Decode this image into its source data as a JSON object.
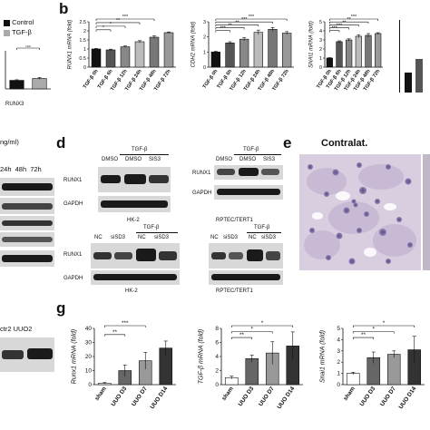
{
  "panel_labels": {
    "b": "b",
    "d": "d",
    "e": "e",
    "g": "g"
  },
  "a": {
    "legend": [
      "Control",
      "TGF-β"
    ],
    "legend_colors": [
      "#111111",
      "#aaaaaa"
    ],
    "ns": "ns",
    "xlabel": "RUNX3"
  },
  "c": {
    "unit_frag": "ng/ml)",
    "times": [
      "24h",
      "48h",
      "72h"
    ],
    "bottom_label": "ctr2  UUO2"
  },
  "d": {
    "blot1": {
      "top_group": "TGF-β",
      "lanes": [
        "DMSO",
        "DMSO",
        "SIS3"
      ],
      "rows": [
        "RUNX1",
        "GAPDH"
      ],
      "cell": "HK-2"
    },
    "blot2": {
      "top_group": "TGF-β",
      "lanes": [
        "DMSO",
        "DMSO",
        "SIS3"
      ],
      "rows": [
        "RUNX1",
        "GAPDH"
      ],
      "cell": "RPTEC/TERT1"
    },
    "blot3": {
      "top_group": "TGF-β",
      "lanes": [
        "NC",
        "siSD3",
        "NC",
        "siSD3"
      ],
      "rows": [
        "RUNX1",
        "GAPDH"
      ],
      "cell": "HK-2"
    },
    "blot4": {
      "top_group": "TGF-β",
      "lanes": [
        "NC",
        "siSD3",
        "NC",
        "siSD3"
      ],
      "rows": [
        "RUNX1",
        "GAPDH"
      ],
      "cell": "RPTEC/TERT1"
    }
  },
  "e": {
    "title": "Contralat."
  },
  "chart_data": [
    {
      "id": "b1",
      "type": "bar",
      "ylabel": "RUNX1 mRNA (fold)",
      "ylim": [
        0,
        2.5
      ],
      "yticks": [
        0,
        0.5,
        1,
        1.5,
        2,
        2.5
      ],
      "categories": [
        "TGF-β 0h",
        "TGF-β 6h",
        "TGF-β 12h",
        "TGF-β 24h",
        "TGF-β 48h",
        "TGF-β 72h"
      ],
      "values": [
        1.0,
        0.95,
        1.12,
        1.4,
        1.65,
        1.9
      ],
      "errors": [
        0.03,
        0.04,
        0.05,
        0.06,
        0.08,
        0.04
      ],
      "colors": [
        "#111111",
        "#555555",
        "#888888",
        "#bbbbbb",
        "#777777",
        "#999999"
      ],
      "sig": [
        "*",
        "*",
        "**",
        "***"
      ]
    },
    {
      "id": "b2",
      "type": "bar",
      "ylabel": "CDH2 mRNA (fold)",
      "ylim": [
        0,
        3
      ],
      "yticks": [
        0,
        1,
        2,
        3
      ],
      "categories": [
        "TGF-β 0h",
        "TGF-β 6h",
        "TGF-β 12h",
        "TGF-β 24h",
        "TGF-β 48h",
        "TGF-β 72h"
      ],
      "values": [
        1.0,
        1.6,
        1.85,
        2.3,
        2.5,
        2.25
      ],
      "errors": [
        0.05,
        0.08,
        0.1,
        0.15,
        0.12,
        0.1
      ],
      "colors": [
        "#111111",
        "#555555",
        "#888888",
        "#bbbbbb",
        "#777777",
        "#999999"
      ],
      "sig": [
        "***",
        "**",
        "**",
        "***",
        "***"
      ]
    },
    {
      "id": "b3",
      "type": "bar",
      "ylabel": "SNAI1 mRNA (fold)",
      "ylim": [
        0,
        5
      ],
      "yticks": [
        0,
        1,
        2,
        3,
        4,
        5
      ],
      "categories": [
        "TGF-β 0h",
        "TGF-β 6h",
        "TGF-β 12h",
        "TGF-β 24h",
        "TGF-β 48h",
        "TGF-β 72h"
      ],
      "values": [
        1.0,
        2.8,
        3.0,
        3.4,
        3.5,
        3.7
      ],
      "errors": [
        0.05,
        0.1,
        0.12,
        0.15,
        0.2,
        0.1
      ],
      "colors": [
        "#111111",
        "#555555",
        "#888888",
        "#bbbbbb",
        "#777777",
        "#999999"
      ],
      "sig": [
        "***",
        "***",
        "**",
        "**",
        "***"
      ]
    },
    {
      "id": "a1",
      "type": "bar",
      "ylabel": "",
      "ylim": [
        0,
        2
      ],
      "yticks": [],
      "categories": [
        "Control",
        "TGF-β"
      ],
      "values": [
        0.45,
        0.55
      ],
      "errors": [
        0.03,
        0.05
      ],
      "colors": [
        "#111111",
        "#aaaaaa"
      ],
      "sig": [
        "ns"
      ]
    },
    {
      "id": "g1",
      "type": "bar",
      "ylabel": "Runx1 mRNA (fold)",
      "ylim": [
        0,
        40
      ],
      "yticks": [
        0,
        10,
        20,
        30,
        40
      ],
      "categories": [
        "sham",
        "UUO D3",
        "UUO D7",
        "UUO D14"
      ],
      "values": [
        1,
        10,
        17,
        26
      ],
      "errors": [
        0.5,
        4,
        6,
        5
      ],
      "colors": [
        "#ffffff",
        "#666666",
        "#999999",
        "#333333"
      ],
      "sig": [
        "**",
        "***"
      ]
    },
    {
      "id": "g2",
      "type": "bar",
      "ylabel": "TGF-β mRNA (fold)",
      "ylim": [
        0,
        8
      ],
      "yticks": [
        0,
        2,
        4,
        6,
        8
      ],
      "categories": [
        "sham",
        "UUO D3",
        "UUO D7",
        "UUO D14"
      ],
      "values": [
        1,
        3.7,
        4.5,
        5.5
      ],
      "errors": [
        0.2,
        0.5,
        1.6,
        2.0
      ],
      "colors": [
        "#ffffff",
        "#666666",
        "#999999",
        "#333333"
      ],
      "sig": [
        "**",
        "*",
        "*"
      ]
    },
    {
      "id": "g3",
      "type": "bar",
      "ylabel": "Snai1 mRNA (fold)",
      "ylim": [
        0,
        5
      ],
      "yticks": [
        0,
        1,
        2,
        3,
        4,
        5
      ],
      "categories": [
        "sham",
        "UUO D3",
        "UUO D7",
        "UUO D14"
      ],
      "values": [
        1,
        2.4,
        2.7,
        3.1
      ],
      "errors": [
        0.1,
        0.5,
        0.3,
        1.2
      ],
      "colors": [
        "#ffffff",
        "#666666",
        "#999999",
        "#333333"
      ],
      "sig": [
        "**",
        "*",
        "*"
      ]
    }
  ]
}
